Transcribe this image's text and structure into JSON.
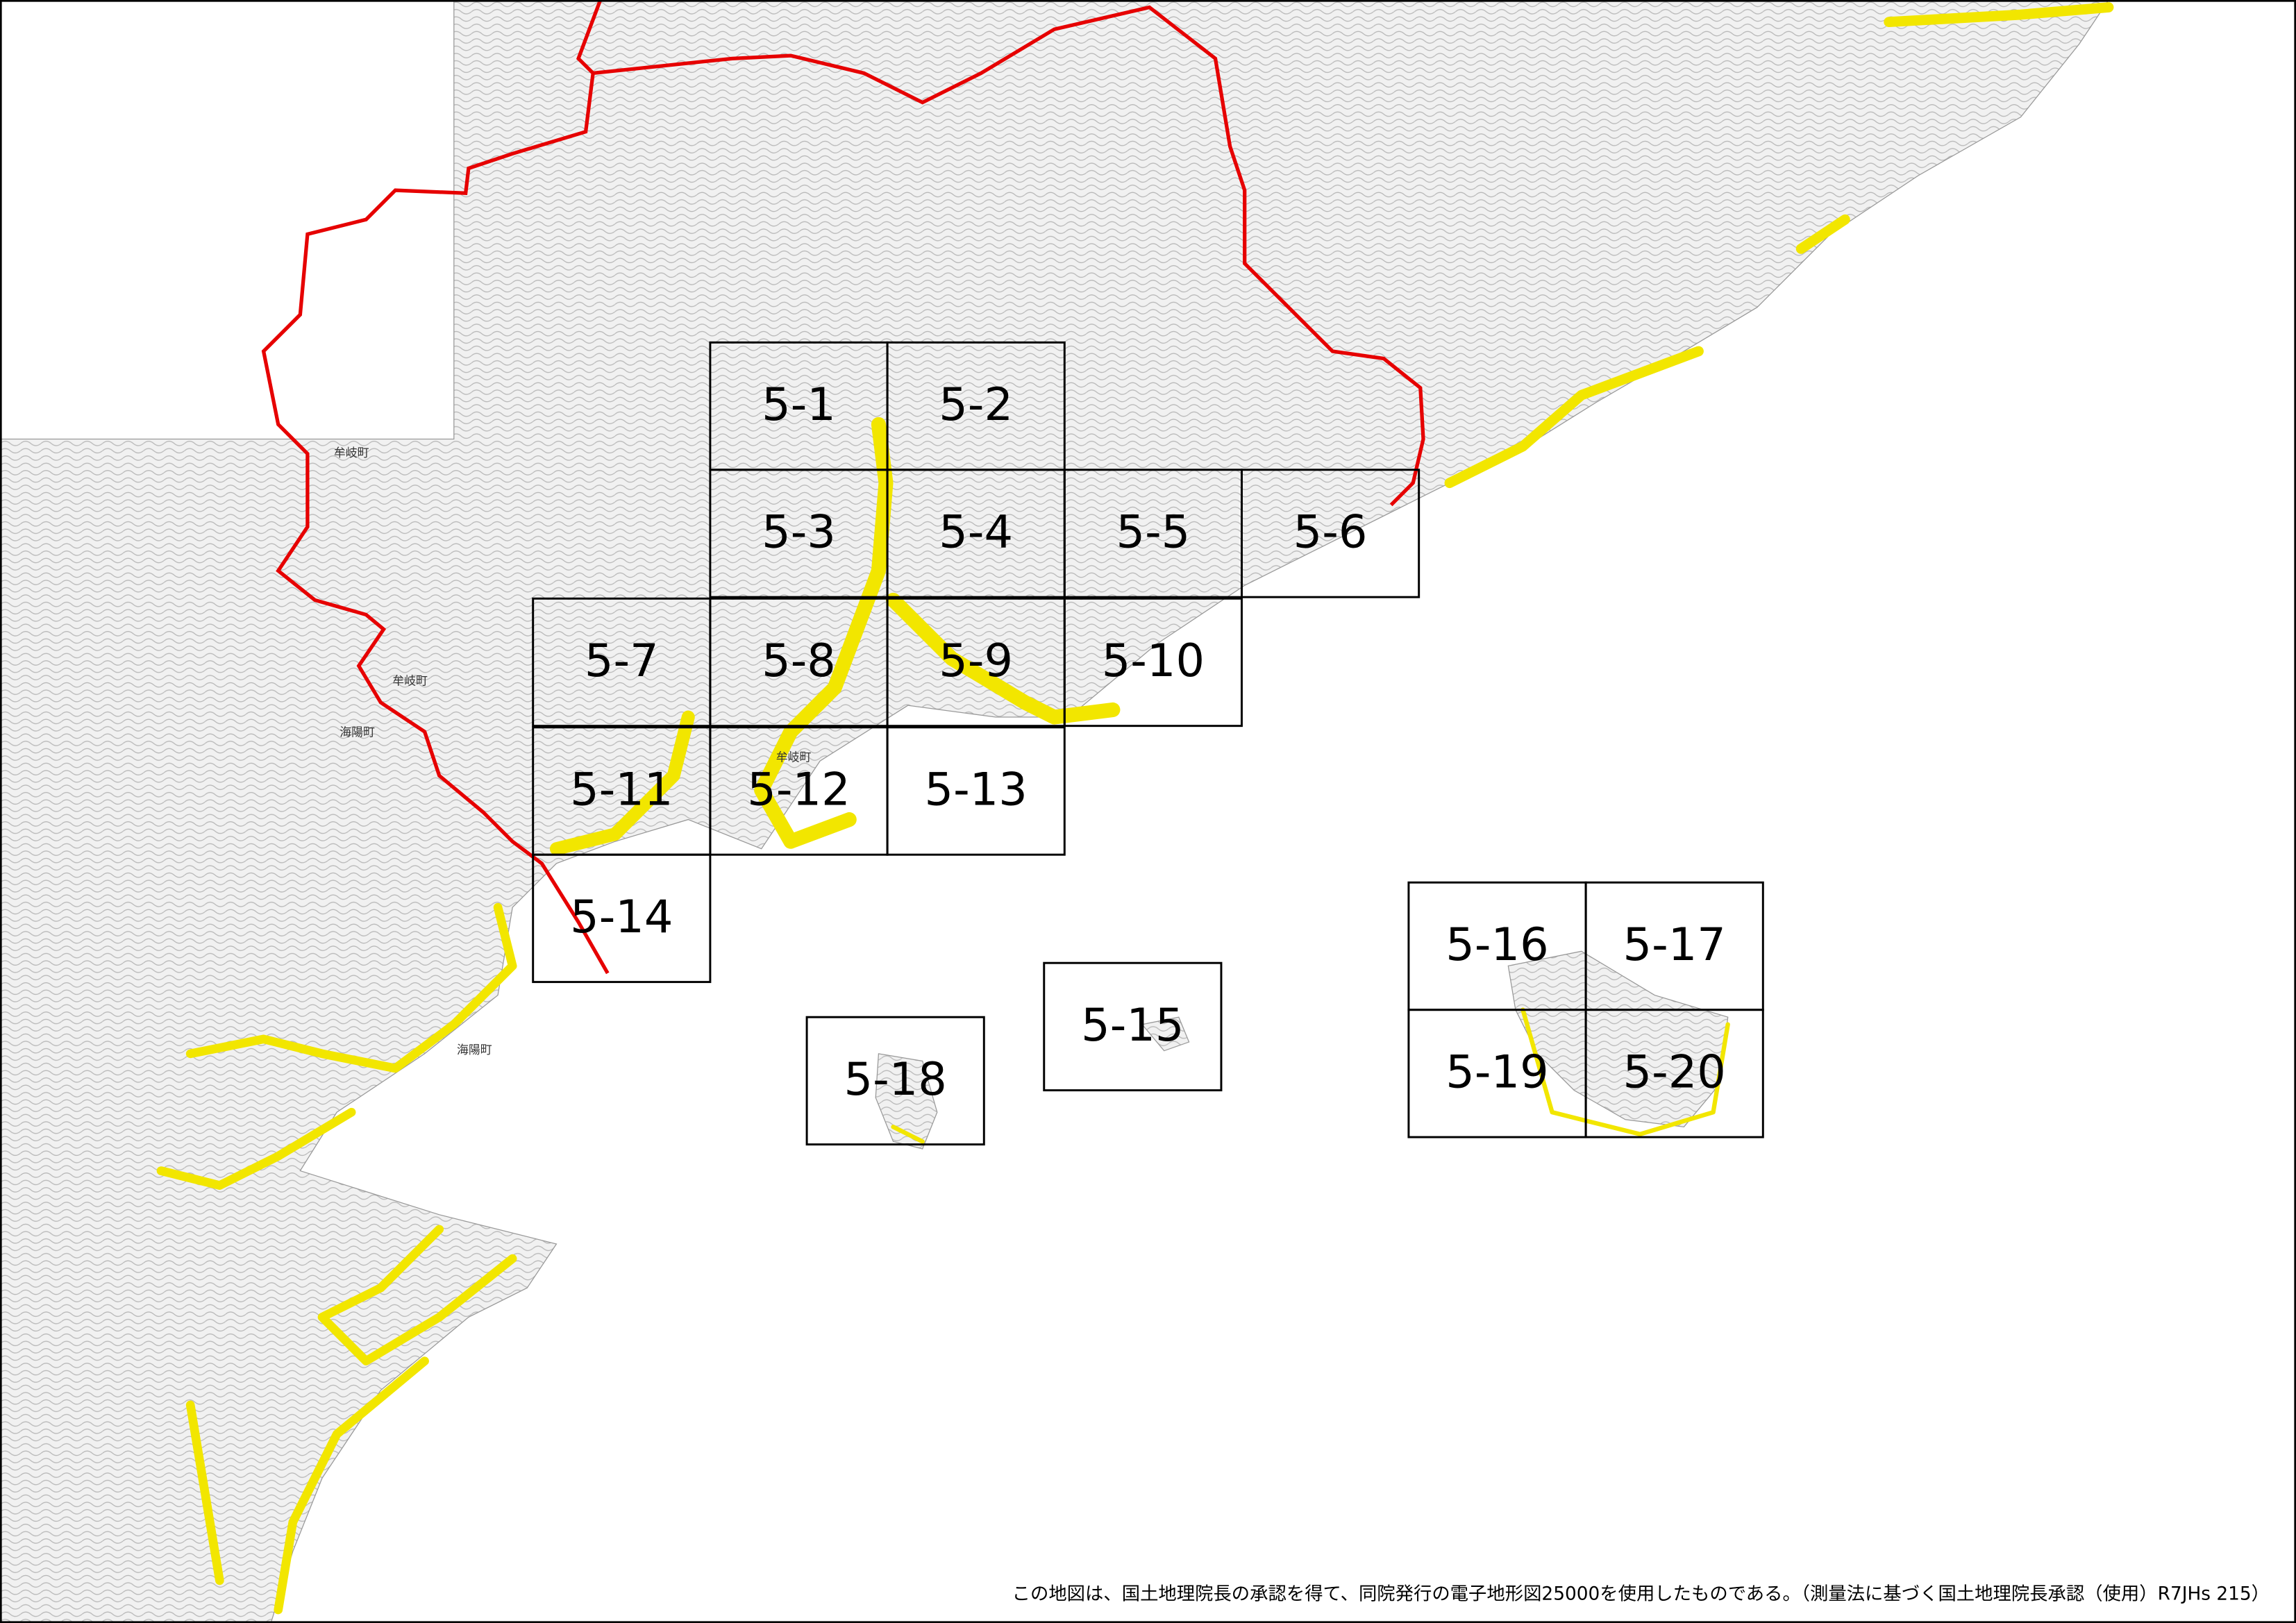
{
  "cells": [
    "5-1",
    "5-2",
    "5-3",
    "5-4",
    "5-5",
    "5-6",
    "5-7",
    "5-8",
    "5-9",
    "5-10",
    "5-11",
    "5-12",
    "5-13",
    "5-14",
    "5-15",
    "5-16",
    "5-17",
    "5-18",
    "5-19",
    "5-20"
  ],
  "town_labels": [
    "牟岐町",
    "牟岐町",
    "海陽町",
    "海陽町",
    "牟岐町"
  ],
  "footer": "この地図は、国土地理院長の承認を得て、同院発行の電子地形図25000を使用したものである。（測量法に基づく国土地理院長承認（使用）R7JHs 215）"
}
